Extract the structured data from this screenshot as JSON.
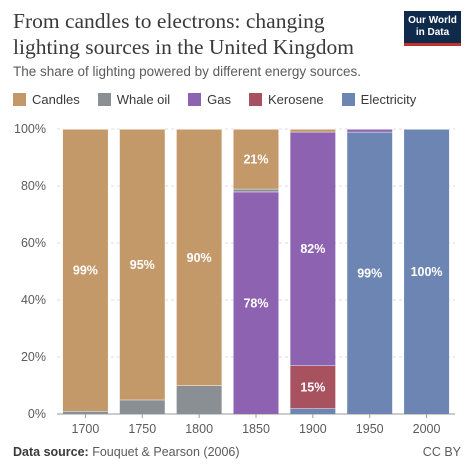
{
  "header": {
    "title": "From candles to electrons: changing lighting sources in the United Kingdom",
    "subtitle": "The share of lighting powered by different energy sources.",
    "logo_text": "Our World in Data"
  },
  "footer": {
    "source_label": "Data source:",
    "source_text": "Fouquet & Pearson (2006)",
    "license": "CC BY"
  },
  "chart_data": {
    "type": "bar",
    "stacked": true,
    "categories": [
      "1700",
      "1750",
      "1800",
      "1850",
      "1900",
      "1950",
      "2000"
    ],
    "ylim": [
      0,
      100
    ],
    "y_ticks": [
      "0%",
      "20%",
      "40%",
      "60%",
      "80%",
      "100%"
    ],
    "grid": true,
    "legend_position": "top",
    "series": [
      {
        "name": "Electricity",
        "color": "#6d85b3",
        "values": [
          0,
          0,
          0,
          0,
          2,
          99,
          100
        ],
        "labels": [
          "",
          "",
          "",
          "",
          "",
          "99%",
          "100%"
        ]
      },
      {
        "name": "Kerosene",
        "color": "#a9525f",
        "values": [
          0,
          0,
          0,
          0,
          15,
          0,
          0
        ],
        "labels": [
          "",
          "",
          "",
          "",
          "15%",
          "",
          ""
        ]
      },
      {
        "name": "Gas",
        "color": "#8d63b1",
        "values": [
          0,
          0,
          0,
          78,
          82,
          1,
          0
        ],
        "labels": [
          "",
          "",
          "",
          "78%",
          "82%",
          "",
          ""
        ]
      },
      {
        "name": "Whale oil",
        "color": "#8a8f94",
        "values": [
          1,
          5,
          10,
          1,
          0,
          0,
          0
        ],
        "labels": [
          "",
          "",
          "",
          "",
          "",
          "",
          ""
        ]
      },
      {
        "name": "Candles",
        "color": "#c4996a",
        "values": [
          99,
          95,
          90,
          21,
          1,
          0,
          0
        ],
        "labels": [
          "99%",
          "95%",
          "90%",
          "21%",
          "",
          "",
          ""
        ]
      }
    ],
    "legend_order": [
      "Candles",
      "Whale oil",
      "Gas",
      "Kerosene",
      "Electricity"
    ]
  }
}
